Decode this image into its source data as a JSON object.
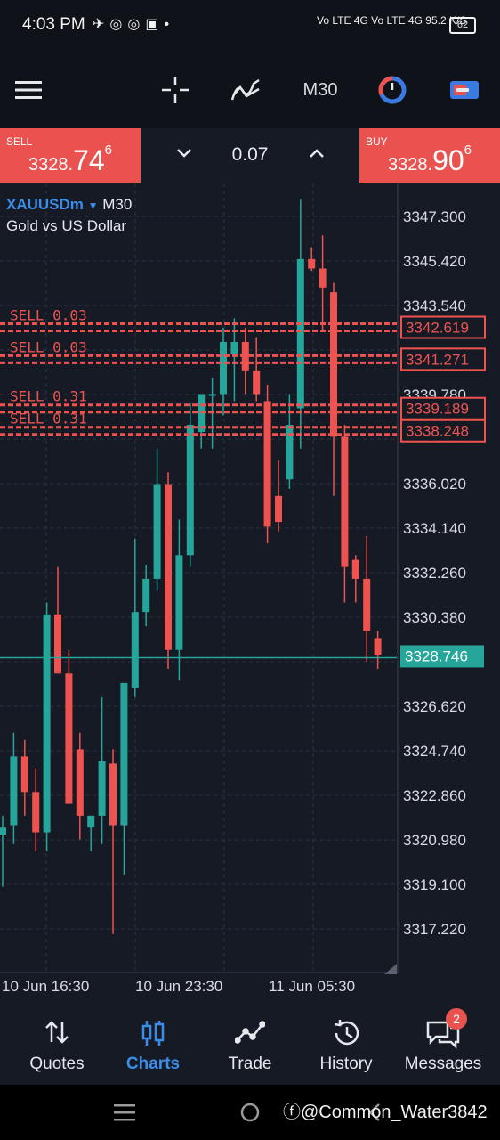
{
  "status_bar": {
    "time": "4:03 PM",
    "left_icons": [
      "telegram-icon",
      "whatsapp-icon",
      "whatsapp-icon",
      "facebook-icon",
      "dot-icon"
    ],
    "network": "Vo LTE 4G Vo LTE 4G",
    "speed": "95.2 K/S",
    "battery": "62"
  },
  "toolbar": {
    "menu_icon": "menu-icon",
    "crosshair_icon": "crosshair-icon",
    "indicators_icon": "indicators-icon",
    "timeframe": "M30",
    "objects_icon": "objects-icon",
    "trade_icon": "one-click-trade-icon"
  },
  "trade_panel": {
    "sell_label": "SELL",
    "sell_price_small": "3328.",
    "sell_price_big": "74",
    "sell_price_sup": "6",
    "buy_label": "BUY",
    "buy_price_small": "3328.",
    "buy_price_big": "90",
    "buy_price_sup": "6",
    "lot": "0.07"
  },
  "chart": {
    "symbol": "XAUUSDm",
    "timeframe": "M30",
    "description": "Gold vs US Dollar"
  },
  "chart_data": {
    "type": "candlestick",
    "symbol": "XAUUSDm",
    "timeframe": "M30",
    "y_ticks": [
      "3347.300",
      "3345.420",
      "3343.540",
      "3339.780",
      "3336.020",
      "3334.140",
      "3332.260",
      "3330.380",
      "3326.620",
      "3324.740",
      "3322.860",
      "3320.980",
      "3319.100",
      "3317.220"
    ],
    "x_labels": [
      "10 Jun 16:30",
      "10 Jun 23:30",
      "11 Jun 05:30"
    ],
    "ylim": [
      3316.5,
      3348.5
    ],
    "grid": true,
    "current_price": "3328.746",
    "candles": [
      {
        "o": 3321.2,
        "h": 3322.0,
        "l": 3319.0,
        "c": 3321.5
      },
      {
        "o": 3321.6,
        "h": 3325.5,
        "l": 3320.8,
        "c": 3324.5
      },
      {
        "o": 3324.5,
        "h": 3325.2,
        "l": 3322.0,
        "c": 3323.0
      },
      {
        "o": 3323.0,
        "h": 3324.0,
        "l": 3320.5,
        "c": 3321.3
      },
      {
        "o": 3321.3,
        "h": 3331.0,
        "l": 3320.5,
        "c": 3330.5
      },
      {
        "o": 3330.5,
        "h": 3332.5,
        "l": 3328.0,
        "c": 3328.0
      },
      {
        "o": 3328.0,
        "h": 3329.0,
        "l": 3322.5,
        "c": 3322.5
      },
      {
        "o": 3324.8,
        "h": 3325.5,
        "l": 3321.0,
        "c": 3322.0
      },
      {
        "o": 3321.5,
        "h": 3322.0,
        "l": 3320.5,
        "c": 3322.0
      },
      {
        "o": 3322.0,
        "h": 3327.0,
        "l": 3320.8,
        "c": 3324.3
      },
      {
        "o": 3324.2,
        "h": 3324.8,
        "l": 3317.0,
        "c": 3321.6
      },
      {
        "o": 3321.6,
        "h": 3327.6,
        "l": 3319.5,
        "c": 3327.6
      },
      {
        "o": 3327.4,
        "h": 3333.7,
        "l": 3327.0,
        "c": 3330.6
      },
      {
        "o": 3330.6,
        "h": 3332.6,
        "l": 3330.0,
        "c": 3332.0
      },
      {
        "o": 3332.0,
        "h": 3337.5,
        "l": 3331.5,
        "c": 3336.0
      },
      {
        "o": 3336.0,
        "h": 3336.5,
        "l": 3328.2,
        "c": 3329.0
      },
      {
        "o": 3329.0,
        "h": 3334.5,
        "l": 3327.7,
        "c": 3333.0
      },
      {
        "o": 3333.0,
        "h": 3339.4,
        "l": 3332.5,
        "c": 3338.5
      },
      {
        "o": 3338.2,
        "h": 3339.8,
        "l": 3337.5,
        "c": 3339.8
      },
      {
        "o": 3339.8,
        "h": 3340.5,
        "l": 3337.5,
        "c": 3339.8
      },
      {
        "o": 3339.8,
        "h": 3342.6,
        "l": 3338.9,
        "c": 3342.0
      },
      {
        "o": 3341.5,
        "h": 3343.0,
        "l": 3339.5,
        "c": 3342.0
      },
      {
        "o": 3342.0,
        "h": 3342.6,
        "l": 3339.8,
        "c": 3340.8
      },
      {
        "o": 3340.8,
        "h": 3342.2,
        "l": 3339.5,
        "c": 3339.8
      },
      {
        "o": 3339.5,
        "h": 3340.2,
        "l": 3333.5,
        "c": 3334.2
      },
      {
        "o": 3335.5,
        "h": 3337.0,
        "l": 3334.0,
        "c": 3334.4
      },
      {
        "o": 3336.2,
        "h": 3339.8,
        "l": 3335.8,
        "c": 3338.5
      },
      {
        "o": 3339.2,
        "h": 3348.0,
        "l": 3337.5,
        "c": 3345.5
      },
      {
        "o": 3345.5,
        "h": 3346.0,
        "l": 3345.0,
        "c": 3345.1
      },
      {
        "o": 3345.1,
        "h": 3346.5,
        "l": 3342.5,
        "c": 3344.3
      },
      {
        "o": 3344.1,
        "h": 3344.5,
        "l": 3335.5,
        "c": 3338.0
      },
      {
        "o": 3338.0,
        "h": 3338.5,
        "l": 3331.0,
        "c": 3332.5
      },
      {
        "o": 3332.8,
        "h": 3333.0,
        "l": 3331.0,
        "c": 3332.0
      },
      {
        "o": 3332.0,
        "h": 3333.8,
        "l": 3328.5,
        "c": 3329.8
      },
      {
        "o": 3329.5,
        "h": 3329.8,
        "l": 3328.2,
        "c": 3328.8
      }
    ],
    "levels": [
      {
        "label": "SELL 0.03",
        "price": "3342.619",
        "value": 3342.619
      },
      {
        "label": "SELL 0.03",
        "price": "3341.271",
        "value": 3341.271
      },
      {
        "label": "SELL 0.31",
        "price": "3339.189",
        "value": 3339.189
      },
      {
        "label": "SELL 0.31",
        "price": "3338.248",
        "value": 3338.248
      }
    ],
    "colors": {
      "bull": "#26a69a",
      "bear": "#ef5350",
      "level": "#ef5350",
      "grid": "#2b3142",
      "price_line": "#26a69a"
    }
  },
  "bottom_nav": {
    "items": [
      {
        "label": "Quotes",
        "icon": "quotes-icon"
      },
      {
        "label": "Charts",
        "icon": "charts-icon"
      },
      {
        "label": "Trade",
        "icon": "trade-icon"
      },
      {
        "label": "History",
        "icon": "history-icon"
      },
      {
        "label": "Messages",
        "icon": "messages-icon"
      }
    ],
    "messages_badge": "2"
  },
  "system_nav": {
    "watermark": "@Common_Water3842"
  }
}
